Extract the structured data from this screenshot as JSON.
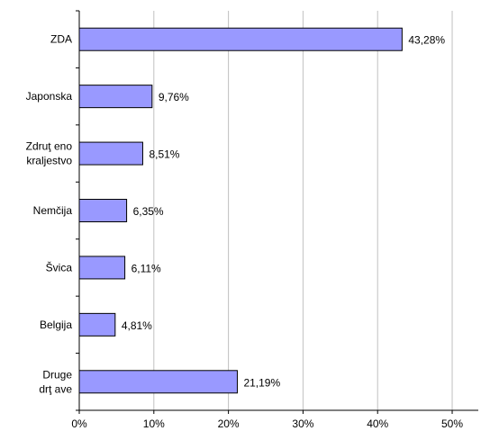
{
  "chart_data": {
    "type": "bar",
    "orientation": "horizontal",
    "categories": [
      [
        "ZDA"
      ],
      [
        "Japonska"
      ],
      [
        "Zdruţ eno",
        "kraljestvo"
      ],
      [
        "Nemčija"
      ],
      [
        "Švica"
      ],
      [
        "Belgija"
      ],
      [
        "Druge",
        "drţ ave"
      ]
    ],
    "values": [
      43.28,
      9.76,
      8.51,
      6.35,
      6.11,
      4.81,
      21.19
    ],
    "data_labels": [
      "43,28%",
      "9,76%",
      "8,51%",
      "6,35%",
      "6,11%",
      "4,81%",
      "21,19%"
    ],
    "x_ticks": [
      0,
      10,
      20,
      30,
      40,
      50
    ],
    "x_tick_labels": [
      "0%",
      "10%",
      "20%",
      "30%",
      "40%",
      "50%"
    ],
    "xlim": [
      0,
      53.5
    ],
    "title": "",
    "xlabel": "",
    "ylabel": "",
    "grid": "vertical",
    "legend": "none",
    "colors": {
      "bar_fill": "#9999ff",
      "bar_stroke": "#000000",
      "grid": "#c0c0c0",
      "axis": "#000000"
    }
  }
}
